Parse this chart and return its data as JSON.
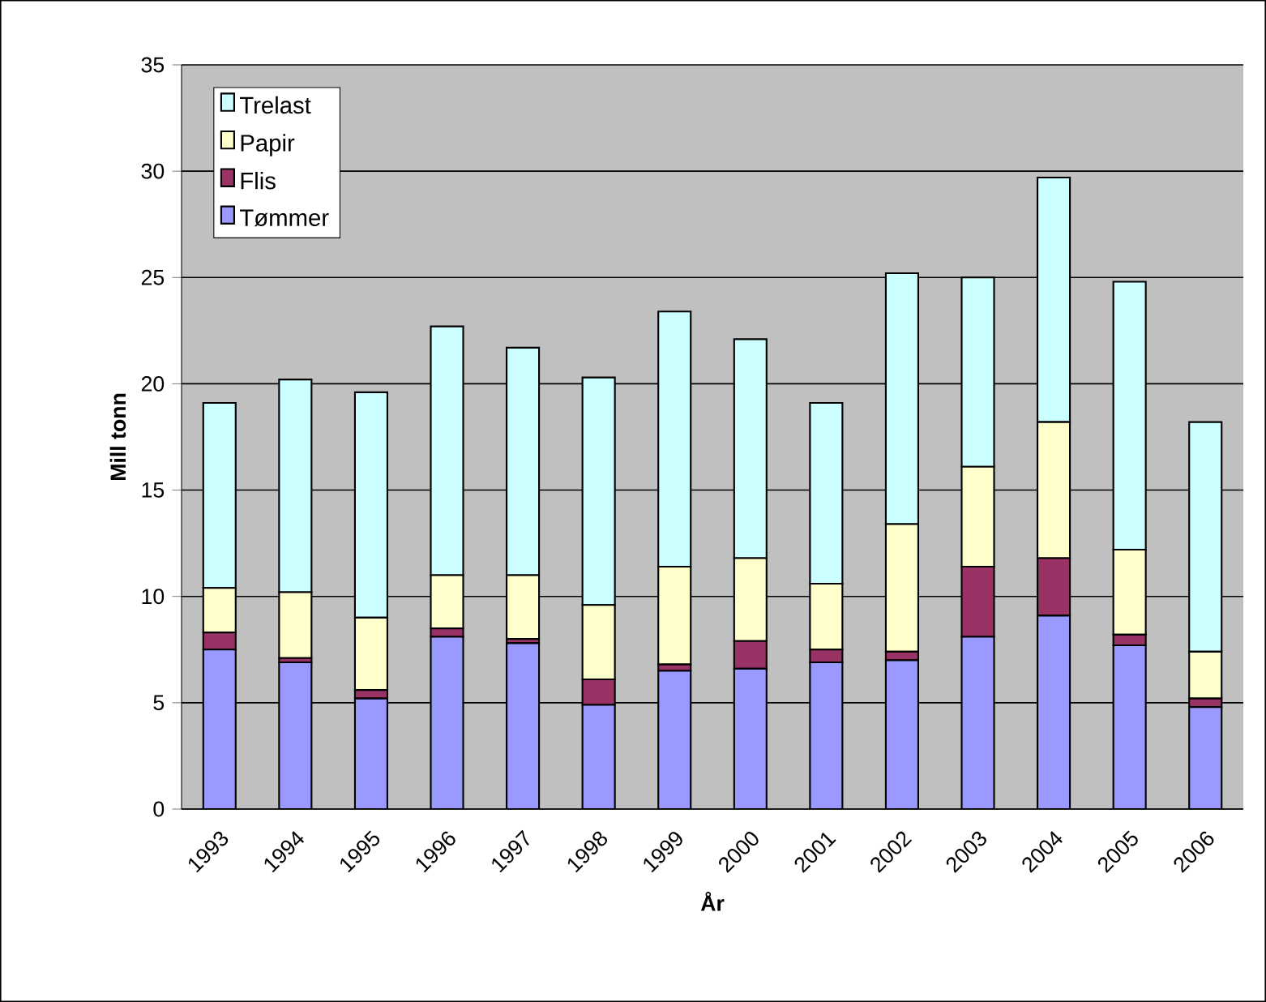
{
  "chart_data": {
    "type": "bar",
    "stacked": true,
    "xlabel": "År",
    "ylabel": "Mill tonn",
    "categories": [
      "1993",
      "1994",
      "1995",
      "1996",
      "1997",
      "1998",
      "1999",
      "2000",
      "2001",
      "2002",
      "2003",
      "2004",
      "2005",
      "2006"
    ],
    "series": [
      {
        "name": "Tømmer",
        "color": "#9999ff",
        "values": [
          7.5,
          6.9,
          5.2,
          8.1,
          7.8,
          4.9,
          6.5,
          6.6,
          6.9,
          7.0,
          8.1,
          9.1,
          7.7,
          4.8
        ]
      },
      {
        "name": "Flis",
        "color": "#993366",
        "values": [
          0.8,
          0.2,
          0.4,
          0.4,
          0.2,
          1.2,
          0.3,
          1.3,
          0.6,
          0.4,
          3.3,
          2.7,
          0.5,
          0.4
        ]
      },
      {
        "name": "Papir",
        "color": "#ffffcc",
        "values": [
          2.1,
          3.1,
          3.4,
          2.5,
          3.0,
          3.5,
          4.6,
          3.9,
          3.1,
          6.0,
          4.7,
          6.4,
          4.0,
          2.2
        ]
      },
      {
        "name": "Trelast",
        "color": "#ccffff",
        "values": [
          8.7,
          10.0,
          10.6,
          11.7,
          10.7,
          10.7,
          12.0,
          10.3,
          8.5,
          11.8,
          8.9,
          11.5,
          12.6,
          10.8
        ]
      }
    ],
    "ylim": [
      0,
      35
    ],
    "yticks": [
      0,
      5,
      10,
      15,
      20,
      25,
      30,
      35
    ],
    "grid": "y",
    "legend": "top left"
  }
}
